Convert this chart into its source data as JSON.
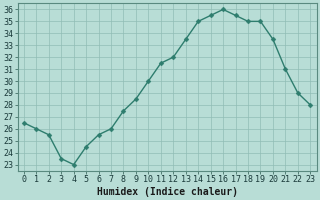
{
  "x": [
    0,
    1,
    2,
    3,
    4,
    5,
    6,
    7,
    8,
    9,
    10,
    11,
    12,
    13,
    14,
    15,
    16,
    17,
    18,
    19,
    20,
    21,
    22,
    23
  ],
  "y": [
    26.5,
    26.0,
    25.5,
    23.5,
    23.0,
    24.5,
    25.5,
    26.0,
    27.5,
    28.5,
    30.0,
    31.5,
    32.0,
    33.5,
    35.0,
    35.5,
    36.0,
    35.5,
    35.0,
    35.0,
    33.5,
    31.0,
    29.0,
    28.0
  ],
  "line_color": "#2e7d6e",
  "marker_color": "#2e7d6e",
  "bg_color": "#b8ddd6",
  "grid_color": "#90bdb5",
  "xlabel": "Humidex (Indice chaleur)",
  "xlim": [
    -0.5,
    23.5
  ],
  "ylim": [
    22.5,
    36.5
  ],
  "yticks": [
    23,
    24,
    25,
    26,
    27,
    28,
    29,
    30,
    31,
    32,
    33,
    34,
    35,
    36
  ],
  "xticks": [
    0,
    1,
    2,
    3,
    4,
    5,
    6,
    7,
    8,
    9,
    10,
    11,
    12,
    13,
    14,
    15,
    16,
    17,
    18,
    19,
    20,
    21,
    22,
    23
  ],
  "marker_size": 2.5,
  "line_width": 1.0,
  "tick_labelsize": 6,
  "xlabel_fontsize": 7
}
